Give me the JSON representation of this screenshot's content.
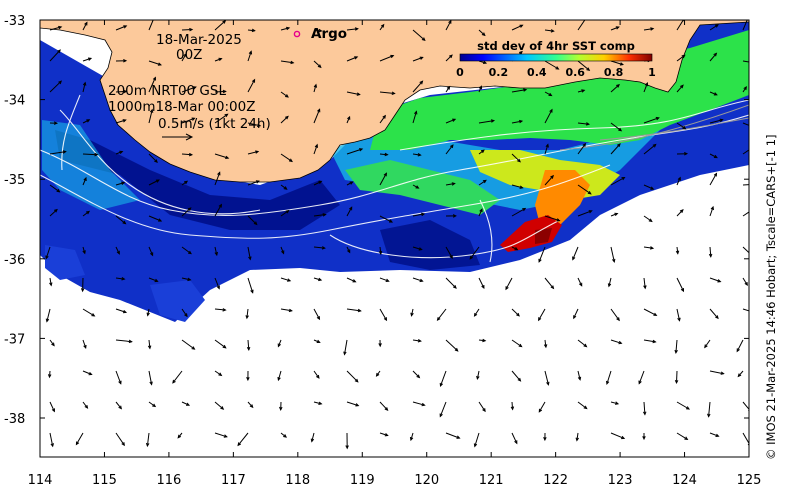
{
  "map": {
    "date_line": "18-Mar-2025",
    "time_line": "00Z",
    "depth_line1": "200m  NRT00 GSL",
    "depth_line2": "1000m18-Mar 00:00Z",
    "scale_label": "0.5m/s (1kt 24h)",
    "argo_label": "Argo",
    "credit": "© IMOS 21-Mar-2025 14:46 Hobart; Tscale=CARS+[-1 1]",
    "x_ticks": [
      "114",
      "115",
      "116",
      "117",
      "118",
      "119",
      "120",
      "121",
      "122",
      "123",
      "124",
      "125"
    ],
    "y_ticks": [
      "-33",
      "-34",
      "-35",
      "-36",
      "-37",
      "-38"
    ]
  },
  "colorbar": {
    "title": "std dev of 4hr SST comp",
    "tick_labels": [
      "0",
      "0.2",
      "0.4",
      "0.6",
      "0.8",
      "1"
    ],
    "range": [
      0,
      1
    ]
  },
  "colors": {
    "land": "#fcc99b",
    "argo": "#e6008c",
    "vectors": "#000000",
    "contours": "#ffffff"
  }
}
